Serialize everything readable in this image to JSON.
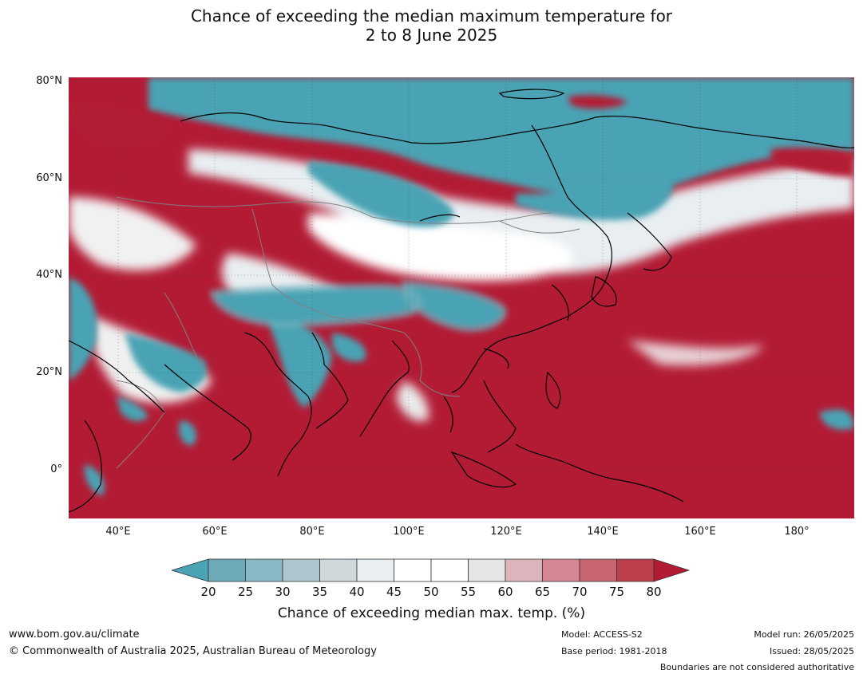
{
  "title_line1": "Chance of exceeding the median maximum temperature for",
  "title_line2": "2 to 8 June 2025",
  "latitude_labels": [
    "80°N",
    "60°N",
    "40°N",
    "20°N",
    "0°"
  ],
  "longitude_labels": [
    "40°E",
    "60°E",
    "80°E",
    "100°E",
    "120°E",
    "140°E",
    "160°E",
    "180°"
  ],
  "colorbar": {
    "ticks": [
      "20",
      "25",
      "30",
      "35",
      "40",
      "45",
      "50",
      "55",
      "60",
      "65",
      "70",
      "75",
      "80"
    ],
    "colors": [
      "#4aa3b4",
      "#6da9b7",
      "#89b8c5",
      "#adc6cd",
      "#cfd8db",
      "#e8eef1",
      "#ffffff",
      "#ffffff",
      "#e5e5e5",
      "#ddb4bb",
      "#d48792",
      "#c86570",
      "#bd3f4d",
      "#b31b35"
    ],
    "label": "Chance of exceeding median max. temp. (%)"
  },
  "map_colors": {
    "below": "#4aa3b4",
    "above": "#b31b35",
    "neutral": "#ffffff",
    "coast": "#000000",
    "border": "#808080"
  },
  "footer": {
    "website": "www.bom.gov.au/climate",
    "copyright": "© Commonwealth of Australia 2025, Australian Bureau of Meteorology",
    "model": "Model: ACCESS-S2",
    "base_period": "Base period: 1981-2018",
    "model_run": "Model run: 26/05/2025",
    "issued": "Issued: 28/05/2025",
    "disclaimer": "Boundaries are not considered authoritative"
  }
}
